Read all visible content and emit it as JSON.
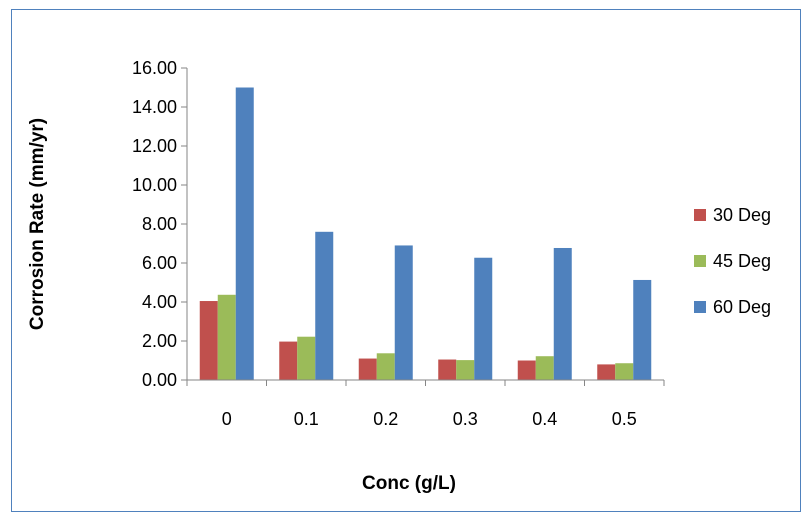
{
  "chart_data": {
    "type": "bar",
    "categories": [
      "0",
      "0.1",
      "0.2",
      "0.3",
      "0.4",
      "0.5"
    ],
    "series": [
      {
        "name": "30 Deg",
        "color": "#c0504d",
        "values": [
          4.05,
          1.97,
          1.1,
          1.05,
          1.0,
          0.8
        ]
      },
      {
        "name": "45 Deg",
        "color": "#9bbb59",
        "values": [
          4.37,
          2.22,
          1.37,
          1.02,
          1.22,
          0.86
        ]
      },
      {
        "name": "60 Deg",
        "color": "#4f81bd",
        "values": [
          15.0,
          7.6,
          6.9,
          6.27,
          6.77,
          5.13
        ]
      }
    ],
    "xlabel": "Conc (g/L)",
    "ylabel": "Corrosion Rate (mm/yr)",
    "ylim": [
      0,
      16
    ],
    "yticks": [
      "0.00",
      "2.00",
      "4.00",
      "6.00",
      "8.00",
      "10.00",
      "12.00",
      "14.00",
      "16.00"
    ],
    "grid": false,
    "legend_position": "right"
  }
}
